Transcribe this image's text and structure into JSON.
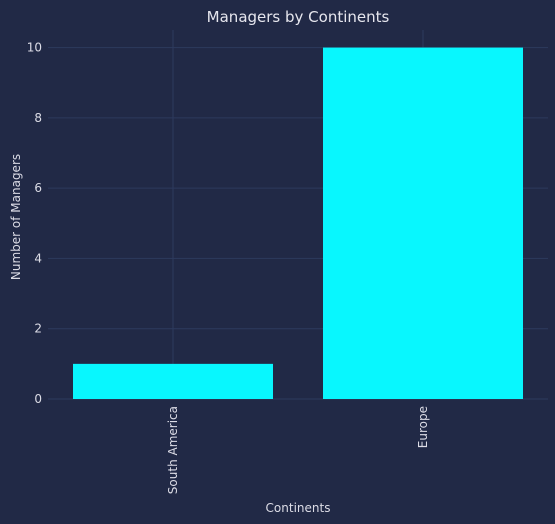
{
  "chart_data": {
    "type": "bar",
    "title": "Managers by Continents",
    "xlabel": "Continents",
    "ylabel": "Number of Managers",
    "categories": [
      "South America",
      "Europe"
    ],
    "values": [
      1,
      10
    ],
    "ylim": [
      0,
      10.5
    ],
    "yticks": [
      0,
      2,
      4,
      6,
      8,
      10
    ],
    "grid": true,
    "colors": {
      "bar": "#08f7fe",
      "background": "#212946",
      "grid": "#2d3a5e",
      "text": "#dcdce6"
    }
  }
}
